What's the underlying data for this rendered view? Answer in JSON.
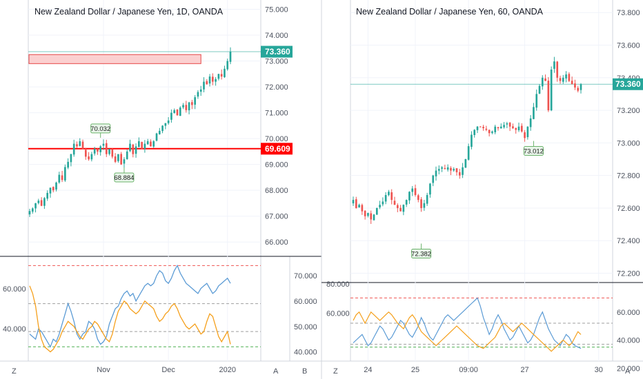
{
  "theme": {
    "up": "#26a69a",
    "down": "#ef5350",
    "blue": "#5b9bd5",
    "orange": "#f59f1a",
    "grid": "#f0f3fa",
    "axis": "#131722",
    "tick": "#4c525e",
    "support": "#ff0000",
    "price_line": "#26a69a",
    "zone_fill": "#fbd0d0",
    "zone_border": "#e64545"
  },
  "bottom_buttons": {
    "z_left": "Z",
    "a_left": "A",
    "b_left": "B",
    "z_right": "Z",
    "a_right": "A"
  },
  "chart_data": [
    {
      "type": "candlestick",
      "id": "daily",
      "title": "New Zealand Dollar / Japanese Yen, 1D, OANDA",
      "ylim": [
        65.5,
        75.2
      ],
      "yticks": [
        "75.000",
        "74.000",
        "73.000",
        "72.000",
        "71.000",
        "70.000",
        "69.000",
        "68.000",
        "67.000",
        "66.000"
      ],
      "ytick_values": [
        75,
        74,
        73,
        72,
        71,
        70,
        69,
        68,
        67,
        66
      ],
      "xticks": [
        {
          "label": "Nov",
          "i": 25
        },
        {
          "label": "Dec",
          "i": 47
        },
        {
          "label": "2020",
          "i": 67
        }
      ],
      "n": 69,
      "price_tag": "73.360",
      "last_price": 73.36,
      "support_tag": "69.609",
      "support": 69.609,
      "zone": {
        "y1": 72.9,
        "y2": 73.25,
        "i1": 0,
        "i2": 58
      },
      "annotations": [
        {
          "label": "70.032",
          "i": 24,
          "value": 70.032,
          "pos": "above"
        },
        {
          "label": "68.884",
          "i": 32,
          "value": 68.884,
          "pos": "below"
        }
      ],
      "closes": [
        67.2,
        67.3,
        67.5,
        67.6,
        67.4,
        67.7,
        67.9,
        68.1,
        68.0,
        68.3,
        68.6,
        68.4,
        68.9,
        69.1,
        69.4,
        69.8,
        69.7,
        69.9,
        69.6,
        69.3,
        69.2,
        69.4,
        69.6,
        69.5,
        69.7,
        69.8,
        69.4,
        69.6,
        69.3,
        69.1,
        69.4,
        69.0,
        69.2,
        69.5,
        69.8,
        69.4,
        69.7,
        69.9,
        69.6,
        69.8,
        69.9,
        69.7,
        69.9,
        70.2,
        70.3,
        70.5,
        70.6,
        70.7,
        71.0,
        71.1,
        70.9,
        71.2,
        71.3,
        71.1,
        71.4,
        71.3,
        71.6,
        71.8,
        71.9,
        72.2,
        72.1,
        72.4,
        72.2,
        72.3,
        72.5,
        72.4,
        72.7,
        73.0,
        73.36
      ],
      "osc": {
        "ylim": [
          38,
          76
        ],
        "yticks_right": [
          "70.000",
          "60.000",
          "50.000",
          "40.000"
        ],
        "ytick_values_right": [
          70,
          60,
          50,
          40
        ],
        "left_axis": {
          "ylim": [
            26,
            74
          ],
          "yticks": [
            "60.000",
            "40.000"
          ],
          "values": [
            60,
            40
          ]
        },
        "levels": [
          {
            "value": 74,
            "color": "#ef5350"
          },
          {
            "value": 59,
            "color": "#9e9e9e"
          },
          {
            "value": 48,
            "color": "#9e9e9e"
          },
          {
            "value": 42,
            "color": "#4caf50"
          }
        ],
        "blue": [
          47,
          46,
          45,
          49,
          48,
          46,
          44,
          42,
          45,
          44,
          47,
          51,
          55,
          59,
          56,
          52,
          47,
          45,
          47,
          48,
          52,
          51,
          49,
          45,
          43,
          44,
          46,
          51,
          54,
          57,
          58,
          61,
          63,
          64,
          62,
          63,
          60,
          62,
          64,
          66,
          67,
          66,
          67,
          70,
          72,
          71,
          68,
          67,
          69,
          72,
          74,
          71,
          69,
          67,
          66,
          65,
          64,
          63,
          65,
          66,
          67,
          65,
          63,
          64,
          66,
          67,
          68,
          69,
          67
        ],
        "orange": [
          66,
          63,
          58,
          50,
          45,
          42,
          41,
          40,
          41,
          43,
          45,
          48,
          50,
          52,
          51,
          50,
          48,
          46,
          45,
          47,
          49,
          50,
          52,
          51,
          49,
          47,
          45,
          44,
          47,
          52,
          56,
          58,
          60,
          59,
          57,
          56,
          55,
          56,
          58,
          60,
          59,
          58,
          57,
          54,
          52,
          53,
          55,
          56,
          58,
          59,
          57,
          54,
          52,
          50,
          49,
          50,
          51,
          49,
          47,
          48,
          52,
          55,
          54,
          50,
          46,
          44,
          46,
          48,
          43
        ]
      }
    },
    {
      "type": "candlestick",
      "id": "hourly",
      "title": "New Zealand Dollar / Japanese Yen, 60, OANDA",
      "ylim": [
        72.16,
        73.86
      ],
      "yticks": [
        "73.800",
        "73.600",
        "73.400",
        "73.200",
        "73.000",
        "72.800",
        "72.600",
        "72.400",
        "72.200"
      ],
      "ytick_values": [
        73.8,
        73.6,
        73.4,
        73.2,
        73.0,
        72.8,
        72.6,
        72.4,
        72.2
      ],
      "xticks": [
        {
          "label": "24",
          "i": 5
        },
        {
          "label": "25",
          "i": 21
        },
        {
          "label": "09:00",
          "i": 39
        },
        {
          "label": "27",
          "i": 58
        },
        {
          "label": "30",
          "i": 83
        }
      ],
      "n": 78,
      "price_tag": "73.360",
      "last_price": 73.36,
      "annotations": [
        {
          "label": "72.382",
          "i": 23,
          "value": 72.382,
          "pos": "below"
        },
        {
          "label": "73.012",
          "i": 61,
          "value": 73.012,
          "pos": "below"
        }
      ],
      "closes": [
        72.65,
        72.6,
        72.62,
        72.58,
        72.55,
        72.57,
        72.53,
        72.56,
        72.6,
        72.62,
        72.64,
        72.68,
        72.7,
        72.65,
        72.62,
        72.6,
        72.58,
        72.62,
        72.65,
        72.7,
        72.72,
        72.68,
        72.65,
        72.6,
        72.63,
        72.68,
        72.75,
        72.8,
        72.83,
        72.84,
        72.85,
        72.84,
        72.85,
        72.83,
        72.84,
        72.82,
        72.8,
        72.85,
        72.9,
        72.98,
        73.05,
        73.08,
        73.1,
        73.1,
        73.09,
        73.08,
        73.06,
        73.07,
        73.1,
        73.09,
        73.1,
        73.11,
        73.12,
        73.1,
        73.09,
        73.08,
        73.1,
        73.07,
        73.03,
        73.1,
        73.15,
        73.22,
        73.3,
        73.35,
        73.4,
        73.38,
        73.2,
        73.45,
        73.5,
        73.4,
        73.38,
        73.4,
        73.42,
        73.38,
        73.36,
        73.34,
        73.32,
        73.36
      ],
      "osc": {
        "ylim": [
          27,
          80
        ],
        "yticks_right": [
          "60.000",
          "40.000",
          "20.000"
        ],
        "ytick_values_right": [
          60,
          40,
          20
        ],
        "left_axis": {
          "ylim": [
            29,
            80
          ],
          "yticks": [
            "80.000",
            "60.000"
          ],
          "values": [
            80,
            60
          ]
        },
        "levels": [
          {
            "value": 70,
            "color": "#ef5350"
          },
          {
            "value": 52,
            "color": "#9e9e9e"
          },
          {
            "value": 37,
            "color": "#9e9e9e"
          },
          {
            "value": 35,
            "color": "#4caf50"
          }
        ],
        "blue": [
          38,
          40,
          42,
          44,
          40,
          36,
          38,
          42,
          46,
          50,
          48,
          44,
          40,
          42,
          46,
          50,
          54,
          52,
          48,
          44,
          42,
          46,
          50,
          56,
          52,
          46,
          42,
          40,
          44,
          48,
          52,
          56,
          58,
          56,
          54,
          56,
          58,
          60,
          62,
          64,
          66,
          68,
          70,
          64,
          56,
          50,
          44,
          48,
          54,
          58,
          54,
          48,
          44,
          40,
          42,
          46,
          50,
          46,
          42,
          38,
          40,
          44,
          50,
          56,
          60,
          54,
          48,
          44,
          40,
          38,
          36,
          40,
          44,
          42,
          38,
          36,
          35,
          34
        ],
        "orange": [
          54,
          58,
          60,
          56,
          52,
          56,
          60,
          58,
          56,
          54,
          56,
          58,
          60,
          58,
          55,
          52,
          50,
          48,
          52,
          56,
          58,
          55,
          50,
          46,
          44,
          42,
          40,
          38,
          36,
          38,
          40,
          42,
          44,
          46,
          48,
          50,
          48,
          46,
          44,
          42,
          40,
          38,
          36,
          35,
          34,
          36,
          38,
          40,
          42,
          46,
          50,
          52,
          50,
          48,
          46,
          48,
          50,
          52,
          50,
          48,
          46,
          44,
          42,
          40,
          38,
          36,
          34,
          32,
          34,
          36,
          38,
          40,
          38,
          36,
          38,
          42,
          46,
          44
        ]
      }
    }
  ]
}
